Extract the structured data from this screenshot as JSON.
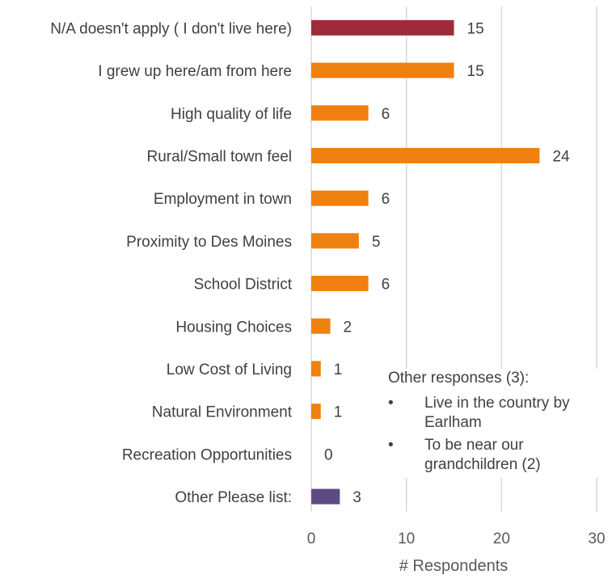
{
  "chart_data": {
    "type": "bar",
    "orientation": "horizontal",
    "categories": [
      "N/A doesn't apply ( I don't live here)",
      "I grew up here/am from here",
      "High quality of life",
      "Rural/Small town feel",
      "Employment in town",
      "Proximity to Des Moines",
      "School District",
      "Housing Choices",
      "Low Cost of Living",
      "Natural Environment",
      "Recreation Opportunities",
      "Other Please list:"
    ],
    "values": [
      15,
      15,
      6,
      24,
      6,
      5,
      6,
      2,
      1,
      1,
      0,
      3
    ],
    "colors": [
      "#a02b3a",
      "#f0800f",
      "#f0800f",
      "#f0800f",
      "#f0800f",
      "#f0800f",
      "#f0800f",
      "#f0800f",
      "#f0800f",
      "#f0800f",
      "#f0800f",
      "#5e4a82"
    ],
    "xlabel": "# Respondents",
    "xlim": [
      0,
      30
    ],
    "xticks": [
      0,
      10,
      20,
      30
    ],
    "grid": true
  },
  "note": {
    "title": "Other responses (3):",
    "bullet": "•",
    "items": [
      "Live in the country by Earlham",
      "To be near our grandchildren (2)"
    ]
  }
}
